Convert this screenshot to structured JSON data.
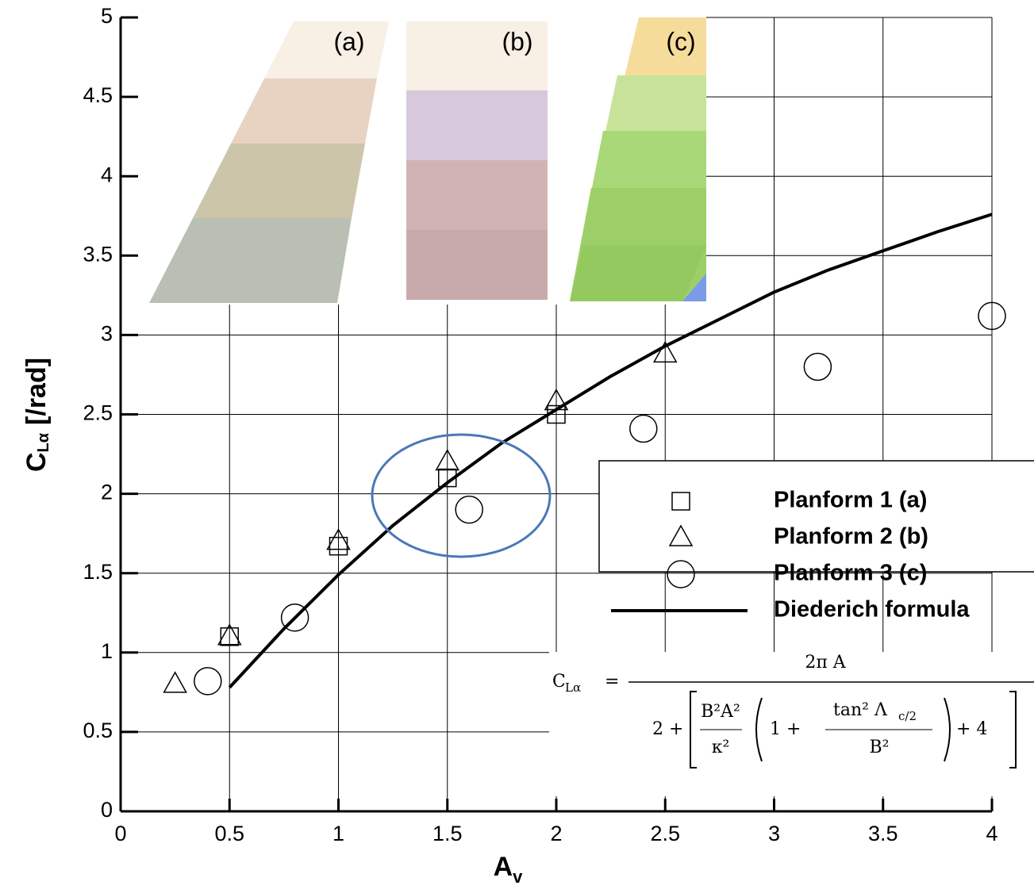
{
  "chart_data": {
    "type": "scatter",
    "x_label": {
      "main": "A",
      "sub": "v"
    },
    "y_label": {
      "main": "C",
      "sub": "Lα",
      "unit": "[/rad]"
    },
    "xlim": [
      0,
      4
    ],
    "ylim": [
      0,
      5
    ],
    "xticks": [
      0,
      0.5,
      1,
      1.5,
      2,
      2.5,
      3,
      3.5,
      4
    ],
    "yticks": [
      0,
      0.5,
      1,
      1.5,
      2,
      2.5,
      3,
      3.5,
      4,
      4.5,
      5
    ],
    "grid": true,
    "legend": "right",
    "series": [
      {
        "name": "Planform 1 (a)",
        "marker": "square",
        "color": "#000000",
        "x": [
          0.5,
          1,
          1.5,
          2
        ],
        "values": [
          1.1,
          1.67,
          2.1,
          2.5
        ]
      },
      {
        "name": "Planform 2 (b)",
        "marker": "triangle",
        "color": "#000000",
        "x": [
          0.25,
          0.5,
          1,
          1.5,
          2,
          2.5
        ],
        "values": [
          0.8,
          1.1,
          1.7,
          2.2,
          2.58,
          2.88
        ]
      },
      {
        "name": "Planform 3 (c)",
        "marker": "circle",
        "color": "#000000",
        "x": [
          0.4,
          0.8,
          1.6,
          2.4,
          3.2,
          4
        ],
        "values": [
          0.82,
          1.22,
          1.9,
          2.41,
          2.8,
          3.12
        ]
      },
      {
        "name": "Diederich formula",
        "marker": "line",
        "color": "#000000",
        "x": [
          0.5,
          0.75,
          1,
          1.25,
          1.5,
          1.75,
          2,
          2.25,
          2.5,
          2.75,
          3,
          3.25,
          3.5,
          3.75,
          4
        ],
        "values": [
          0.78,
          1.15,
          1.49,
          1.8,
          2.07,
          2.32,
          2.53,
          2.74,
          2.93,
          3.1,
          3.27,
          3.41,
          3.53,
          3.65,
          3.76
        ]
      }
    ],
    "inset_labels": [
      "(a)",
      "(b)",
      "(c)"
    ],
    "formula": {
      "lhs": "C",
      "lhs_sub": "Lα",
      "equals": "=",
      "numerator": "2π A",
      "two_plus": "2 +",
      "frac1_num": "B²A²",
      "frac1_den": "κ²",
      "one_plus": "1 +",
      "frac2_num": "tan² Λ",
      "frac2_num_sub": "c/2",
      "frac2_den": "B²",
      "plus_four": "+ 4"
    }
  }
}
